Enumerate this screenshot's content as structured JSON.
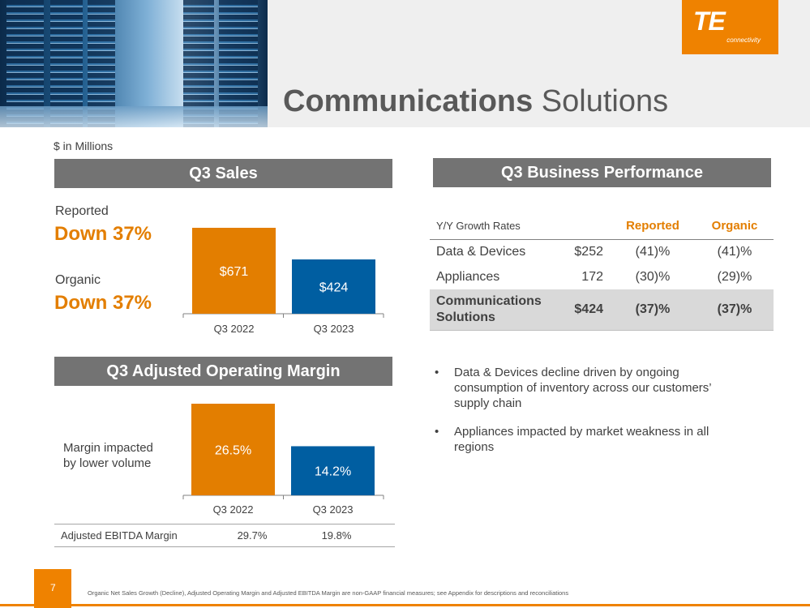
{
  "header": {
    "title_bold": "Communications",
    "title_rest": " Solutions",
    "logo_text": "TE",
    "logo_sub": "connectivity"
  },
  "units_note": "$ in Millions",
  "sales": {
    "heading": "Q3 Sales",
    "reported_label": "Reported",
    "reported_value": "Down 37%",
    "organic_label": "Organic",
    "organic_value": "Down 37%"
  },
  "margin": {
    "heading": "Q3 Adjusted Operating Margin",
    "note_line1": "Margin impacted",
    "note_line2": "by lower volume",
    "ebitda_label": "Adjusted EBITDA Margin",
    "ebitda_values": [
      "29.7%",
      "19.8%"
    ]
  },
  "performance": {
    "heading": "Q3 Business Performance",
    "col_label": "Y/Y Growth Rates",
    "col_reported": "Reported",
    "col_organic": "Organic",
    "rows": [
      {
        "name": "Data & Devices",
        "sales": "$252",
        "reported": "(41)%",
        "organic": "(41)%"
      },
      {
        "name": "Appliances",
        "sales": "172",
        "reported": "(30)%",
        "organic": "(29)%"
      }
    ],
    "total": {
      "name_line1": "Communications",
      "name_line2": "Solutions",
      "sales": "$424",
      "reported": "(37)%",
      "organic": "(37)%"
    }
  },
  "bullets": [
    "Data & Devices decline driven by ongoing consumption of inventory across our customers’ supply chain",
    "Appliances impacted by market weakness in all regions"
  ],
  "footer": {
    "page_number": "7",
    "note": "Organic Net Sales Growth (Decline), Adjusted Operating Margin and Adjusted EBITDA Margin are non-GAAP financial measures; see Appendix for descriptions and reconciliations"
  },
  "colors": {
    "orange": "#e37e00",
    "blue": "#005ea1",
    "gray_bar": "#737373"
  },
  "chart_data": [
    {
      "type": "bar",
      "categories": [
        "Q3 2022",
        "Q3 2023"
      ],
      "values": [
        671,
        424
      ],
      "labels": [
        "$671",
        "$424"
      ],
      "colors": [
        "#e37e00",
        "#005ea1"
      ],
      "ylim": [
        0,
        671
      ]
    },
    {
      "type": "bar",
      "categories": [
        "Q3 2022",
        "Q3 2023"
      ],
      "values": [
        26.5,
        14.2
      ],
      "labels": [
        "26.5%",
        "14.2%"
      ],
      "colors": [
        "#e37e00",
        "#005ea1"
      ],
      "ylim": [
        0,
        26.5
      ]
    }
  ]
}
